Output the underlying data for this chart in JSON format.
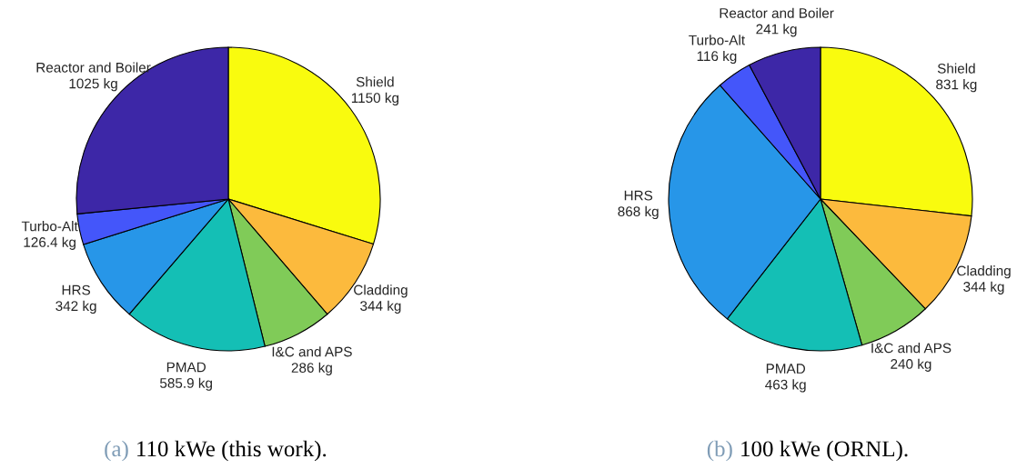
{
  "chart_data": [
    {
      "type": "pie",
      "title": "110 kWe (this work).",
      "annotations": [
        "(a)"
      ],
      "categories": [
        "Shield",
        "Cladding",
        "I&C and APS",
        "PMAD",
        "HRS",
        "Turbo-Alt",
        "Reactor and Boiler"
      ],
      "values": [
        1150,
        344,
        286,
        585.9,
        342,
        126.4,
        1025
      ],
      "value_labels": [
        "1150 kg",
        "344 kg",
        "286 kg",
        "585.9 kg",
        "342 kg",
        "126.4 kg",
        "1025 kg"
      ],
      "colors": [
        "#f9fb0e",
        "#fcba3d",
        "#80cb58",
        "#14bfb5",
        "#2796e8",
        "#4456fa",
        "#3d27a7"
      ]
    },
    {
      "type": "pie",
      "title": "100 kWe (ORNL).",
      "annotations": [
        "(b)"
      ],
      "categories": [
        "Shield",
        "Cladding",
        "I&C and APS",
        "PMAD",
        "HRS",
        "Turbo-Alt",
        "Reactor and Boiler"
      ],
      "values": [
        831,
        344,
        240,
        463,
        868,
        116,
        241
      ],
      "value_labels": [
        "831 kg",
        "344 kg",
        "240 kg",
        "463 kg",
        "868 kg",
        "116 kg",
        "241 kg"
      ],
      "colors": [
        "#f9fb0e",
        "#fcba3d",
        "#80cb58",
        "#14bfb5",
        "#2796e8",
        "#4456fa",
        "#3d27a7"
      ]
    }
  ]
}
